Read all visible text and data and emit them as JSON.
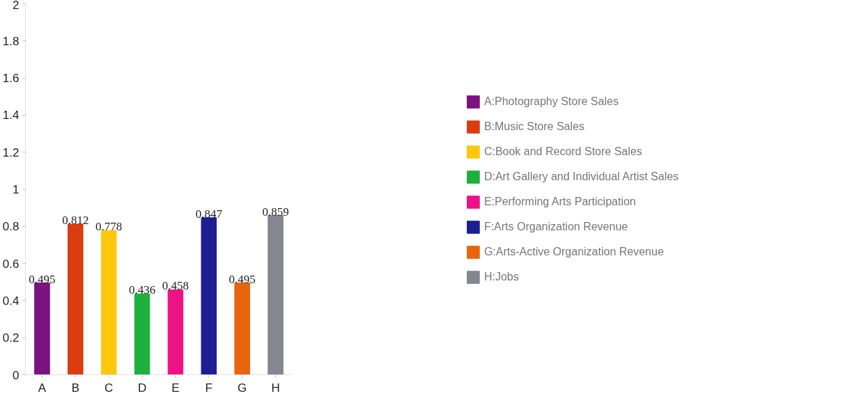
{
  "chart_data": {
    "type": "bar",
    "categories": [
      "A",
      "B",
      "C",
      "D",
      "E",
      "F",
      "G",
      "H"
    ],
    "series": [
      {
        "name": "A:Photography Store Sales",
        "color": "#7b1280",
        "values": [
          0.495,
          null,
          null,
          null,
          null,
          null,
          null,
          null
        ]
      },
      {
        "name": "B:Music Store Sales",
        "color": "#d93d10",
        "values": [
          null,
          0.812,
          null,
          null,
          null,
          null,
          null,
          null
        ]
      },
      {
        "name": "C:Book and Record Store Sales",
        "color": "#fdc80c",
        "values": [
          null,
          null,
          0.778,
          null,
          null,
          null,
          null,
          null
        ]
      },
      {
        "name": "D:Art Gallery and Individual Artist Sales",
        "color": "#1db03c",
        "values": [
          null,
          null,
          null,
          0.436,
          null,
          null,
          null,
          null
        ]
      },
      {
        "name": "E:Performing Arts Participation",
        "color": "#ee1285",
        "values": [
          null,
          null,
          null,
          null,
          0.458,
          null,
          null,
          null
        ]
      },
      {
        "name": "F:Arts Organization Revenue",
        "color": "#1c1e92",
        "values": [
          null,
          null,
          null,
          null,
          null,
          0.847,
          null,
          null
        ]
      },
      {
        "name": "G:Arts-Active Organization Revenue",
        "color": "#e8650c",
        "values": [
          null,
          null,
          null,
          null,
          null,
          null,
          0.495,
          null
        ]
      },
      {
        "name": "H:Jobs",
        "color": "#86868f",
        "values": [
          null,
          null,
          null,
          null,
          null,
          null,
          null,
          0.859
        ]
      }
    ],
    "ylim": [
      0,
      2
    ],
    "yticks": [
      0,
      0.2,
      0.4,
      0.6,
      0.8,
      1,
      1.2,
      1.4,
      1.6,
      1.8,
      2
    ],
    "grid": false,
    "legend": "right",
    "data_labels": true
  }
}
